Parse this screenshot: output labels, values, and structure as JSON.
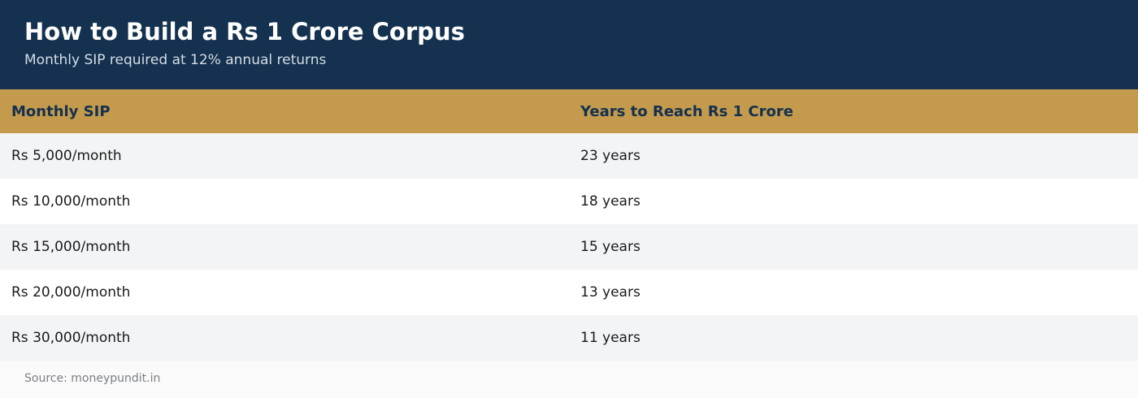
{
  "header": {
    "title": "How to Build a Rs 1 Crore Corpus",
    "subtitle": "Monthly SIP required at 12% annual returns"
  },
  "table": {
    "columns": [
      "Monthly SIP",
      "Years to Reach Rs 1 Crore"
    ],
    "rows": [
      [
        "Rs 5,000/month",
        "23 years"
      ],
      [
        "Rs 10,000/month",
        "18 years"
      ],
      [
        "Rs 15,000/month",
        "15 years"
      ],
      [
        "Rs 20,000/month",
        "13 years"
      ],
      [
        "Rs 30,000/month",
        "11 years"
      ]
    ]
  },
  "footer": {
    "source": "Source: moneypundit.in"
  }
}
